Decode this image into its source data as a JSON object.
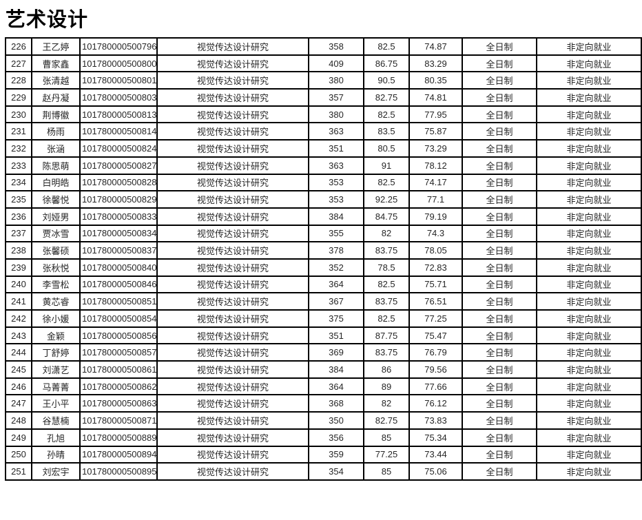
{
  "page_title": "艺术设计",
  "colors": {
    "grid": "#000000",
    "text": "#262626",
    "title": "#000000",
    "bg": "#ffffff"
  },
  "table": {
    "rows": [
      [
        "226",
        "王乙婷",
        "101780000500796",
        "视觉传达设计研究",
        "358",
        "82.5",
        "74.87",
        "全日制",
        "非定向就业"
      ],
      [
        "227",
        "曹家鑫",
        "101780000500800",
        "视觉传达设计研究",
        "409",
        "86.75",
        "83.29",
        "全日制",
        "非定向就业"
      ],
      [
        "228",
        "张清越",
        "101780000500801",
        "视觉传达设计研究",
        "380",
        "90.5",
        "80.35",
        "全日制",
        "非定向就业"
      ],
      [
        "229",
        "赵丹凝",
        "101780000500803",
        "视觉传达设计研究",
        "357",
        "82.75",
        "74.81",
        "全日制",
        "非定向就业"
      ],
      [
        "230",
        "荆博徽",
        "101780000500813",
        "视觉传达设计研究",
        "380",
        "82.5",
        "77.95",
        "全日制",
        "非定向就业"
      ],
      [
        "231",
        "杨雨",
        "101780000500814",
        "视觉传达设计研究",
        "363",
        "83.5",
        "75.87",
        "全日制",
        "非定向就业"
      ],
      [
        "232",
        "张涵",
        "101780000500824",
        "视觉传达设计研究",
        "351",
        "80.5",
        "73.29",
        "全日制",
        "非定向就业"
      ],
      [
        "233",
        "陈思萌",
        "101780000500827",
        "视觉传达设计研究",
        "363",
        "91",
        "78.12",
        "全日制",
        "非定向就业"
      ],
      [
        "234",
        "白明皓",
        "101780000500828",
        "视觉传达设计研究",
        "353",
        "82.5",
        "74.17",
        "全日制",
        "非定向就业"
      ],
      [
        "235",
        "徐馨悦",
        "101780000500829",
        "视觉传达设计研究",
        "353",
        "92.25",
        "77.1",
        "全日制",
        "非定向就业"
      ],
      [
        "236",
        "刘娅男",
        "101780000500833",
        "视觉传达设计研究",
        "384",
        "84.75",
        "79.19",
        "全日制",
        "非定向就业"
      ],
      [
        "237",
        "贾冰雪",
        "101780000500834",
        "视觉传达设计研究",
        "355",
        "82",
        "74.3",
        "全日制",
        "非定向就业"
      ],
      [
        "238",
        "张馨硕",
        "101780000500837",
        "视觉传达设计研究",
        "378",
        "83.75",
        "78.05",
        "全日制",
        "非定向就业"
      ],
      [
        "239",
        "张秋悦",
        "101780000500840",
        "视觉传达设计研究",
        "352",
        "78.5",
        "72.83",
        "全日制",
        "非定向就业"
      ],
      [
        "240",
        "李雪松",
        "101780000500846",
        "视觉传达设计研究",
        "364",
        "82.5",
        "75.71",
        "全日制",
        "非定向就业"
      ],
      [
        "241",
        "黄芯睿",
        "101780000500851",
        "视觉传达设计研究",
        "367",
        "83.75",
        "76.51",
        "全日制",
        "非定向就业"
      ],
      [
        "242",
        "徐小媛",
        "101780000500854",
        "视觉传达设计研究",
        "375",
        "82.5",
        "77.25",
        "全日制",
        "非定向就业"
      ],
      [
        "243",
        "金颖",
        "101780000500856",
        "视觉传达设计研究",
        "351",
        "87.75",
        "75.47",
        "全日制",
        "非定向就业"
      ],
      [
        "244",
        "丁舒婷",
        "101780000500857",
        "视觉传达设计研究",
        "369",
        "83.75",
        "76.79",
        "全日制",
        "非定向就业"
      ],
      [
        "245",
        "刘潇艺",
        "101780000500861",
        "视觉传达设计研究",
        "384",
        "86",
        "79.56",
        "全日制",
        "非定向就业"
      ],
      [
        "246",
        "马菁菁",
        "101780000500862",
        "视觉传达设计研究",
        "364",
        "89",
        "77.66",
        "全日制",
        "非定向就业"
      ],
      [
        "247",
        "王小平",
        "101780000500863",
        "视觉传达设计研究",
        "368",
        "82",
        "76.12",
        "全日制",
        "非定向就业"
      ],
      [
        "248",
        "谷慧楠",
        "101780000500871",
        "视觉传达设计研究",
        "350",
        "82.75",
        "73.83",
        "全日制",
        "非定向就业"
      ],
      [
        "249",
        "孔旭",
        "101780000500889",
        "视觉传达设计研究",
        "356",
        "85",
        "75.34",
        "全日制",
        "非定向就业"
      ],
      [
        "250",
        "孙晴",
        "101780000500894",
        "视觉传达设计研究",
        "359",
        "77.25",
        "73.44",
        "全日制",
        "非定向就业"
      ],
      [
        "251",
        "刘宏宇",
        "101780000500895",
        "视觉传达设计研究",
        "354",
        "85",
        "75.06",
        "全日制",
        "非定向就业"
      ]
    ]
  }
}
